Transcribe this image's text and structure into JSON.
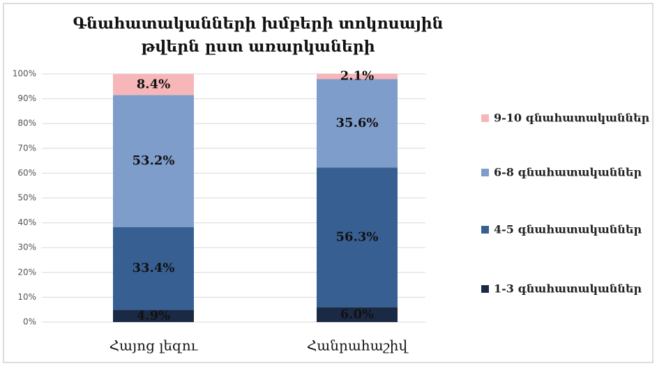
{
  "chart_data": {
    "type": "stacked_bar",
    "title": "Գնահատականների խմբերի տոկոսային թվերն ըստ առարկաների",
    "categories": [
      "Հայոց լեզու",
      "Հանրահաշիվ"
    ],
    "series": [
      {
        "name": "1-3 գնահատականներ",
        "color": "#1b2a44",
        "values": [
          4.9,
          6.0
        ],
        "value_labels": [
          "4.9%",
          "6.0%"
        ]
      },
      {
        "name": "4-5 գնահատականներ",
        "color": "#375f92",
        "values": [
          33.4,
          56.3
        ],
        "value_labels": [
          "33.4%",
          "56.3%"
        ]
      },
      {
        "name": "6-8  գնահատականներ",
        "color": "#7e9dcb",
        "values": [
          53.2,
          35.6
        ],
        "value_labels": [
          "53.2%",
          "35.6%"
        ]
      },
      {
        "name": "9-10 գնահատականներ",
        "color": "#f7b6b8",
        "values": [
          8.4,
          2.1
        ],
        "value_labels": [
          "8.4%",
          "2.1%"
        ]
      }
    ],
    "ylim": [
      0,
      100
    ],
    "yticks": [
      {
        "value": 0,
        "label": "0%"
      },
      {
        "value": 10,
        "label": "10%"
      },
      {
        "value": 20,
        "label": "20%"
      },
      {
        "value": 30,
        "label": "30%"
      },
      {
        "value": 40,
        "label": "40%"
      },
      {
        "value": 50,
        "label": "50%"
      },
      {
        "value": 60,
        "label": "60%"
      },
      {
        "value": 70,
        "label": "70%"
      },
      {
        "value": 80,
        "label": "80%"
      },
      {
        "value": 90,
        "label": "90%"
      },
      {
        "value": 100,
        "label": "100%"
      }
    ],
    "grid": true,
    "legend": "right"
  }
}
